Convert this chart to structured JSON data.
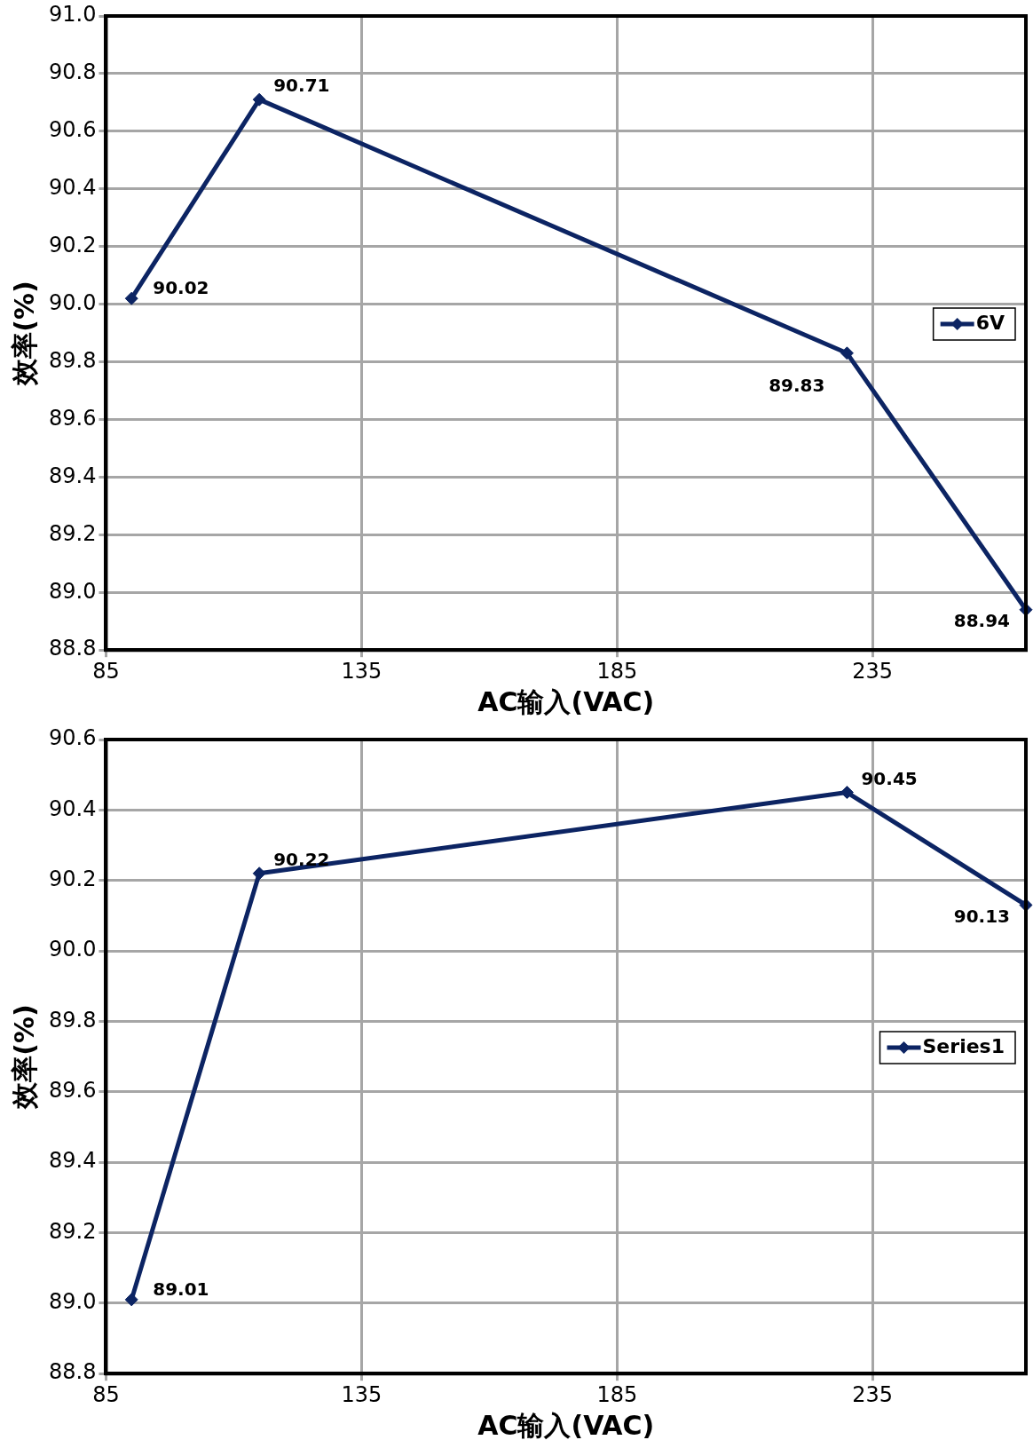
{
  "chart_data": [
    {
      "type": "line",
      "xlabel": "AC输入(VAC)",
      "ylabel": "效率(%)",
      "x": [
        90,
        115,
        230,
        265
      ],
      "series": [
        {
          "name": "6V",
          "color": "#0c2463",
          "values": [
            90.02,
            90.71,
            89.83,
            88.94
          ]
        }
      ],
      "xlim": [
        85,
        265
      ],
      "xticks": [
        85,
        135,
        185,
        235
      ],
      "ylim": [
        88.8,
        91.0
      ],
      "yticks": [
        88.8,
        {
          "value": 89,
          "label": "89.0"
        },
        89.2,
        89.4,
        89.6,
        89.8,
        {
          "value": 90,
          "label": "90.0"
        },
        90.2,
        90.4,
        90.6,
        90.8,
        {
          "value": 91,
          "label": "91.0"
        }
      ],
      "grid": true,
      "legend": "right",
      "marker": "diamond",
      "line_style": "solid",
      "data_labels": true
    },
    {
      "type": "line",
      "xlabel": "AC输入(VAC)",
      "ylabel": "效率(%)",
      "x": [
        90,
        115,
        230,
        265
      ],
      "series": [
        {
          "name": "Series1",
          "color": "#0c2463",
          "values": [
            89.01,
            90.22,
            90.45,
            90.13
          ]
        }
      ],
      "xlim": [
        85,
        265
      ],
      "xticks": [
        85,
        135,
        185,
        235
      ],
      "ylim": [
        88.8,
        90.6
      ],
      "yticks": [
        88.8,
        {
          "value": 89,
          "label": "89.0"
        },
        89.2,
        89.4,
        89.6,
        89.8,
        {
          "value": 90,
          "label": "90.0"
        },
        90.2,
        90.4,
        90.6
      ],
      "grid": true,
      "legend": "right",
      "marker": "diamond",
      "line_style": "solid",
      "data_labels": true
    }
  ]
}
